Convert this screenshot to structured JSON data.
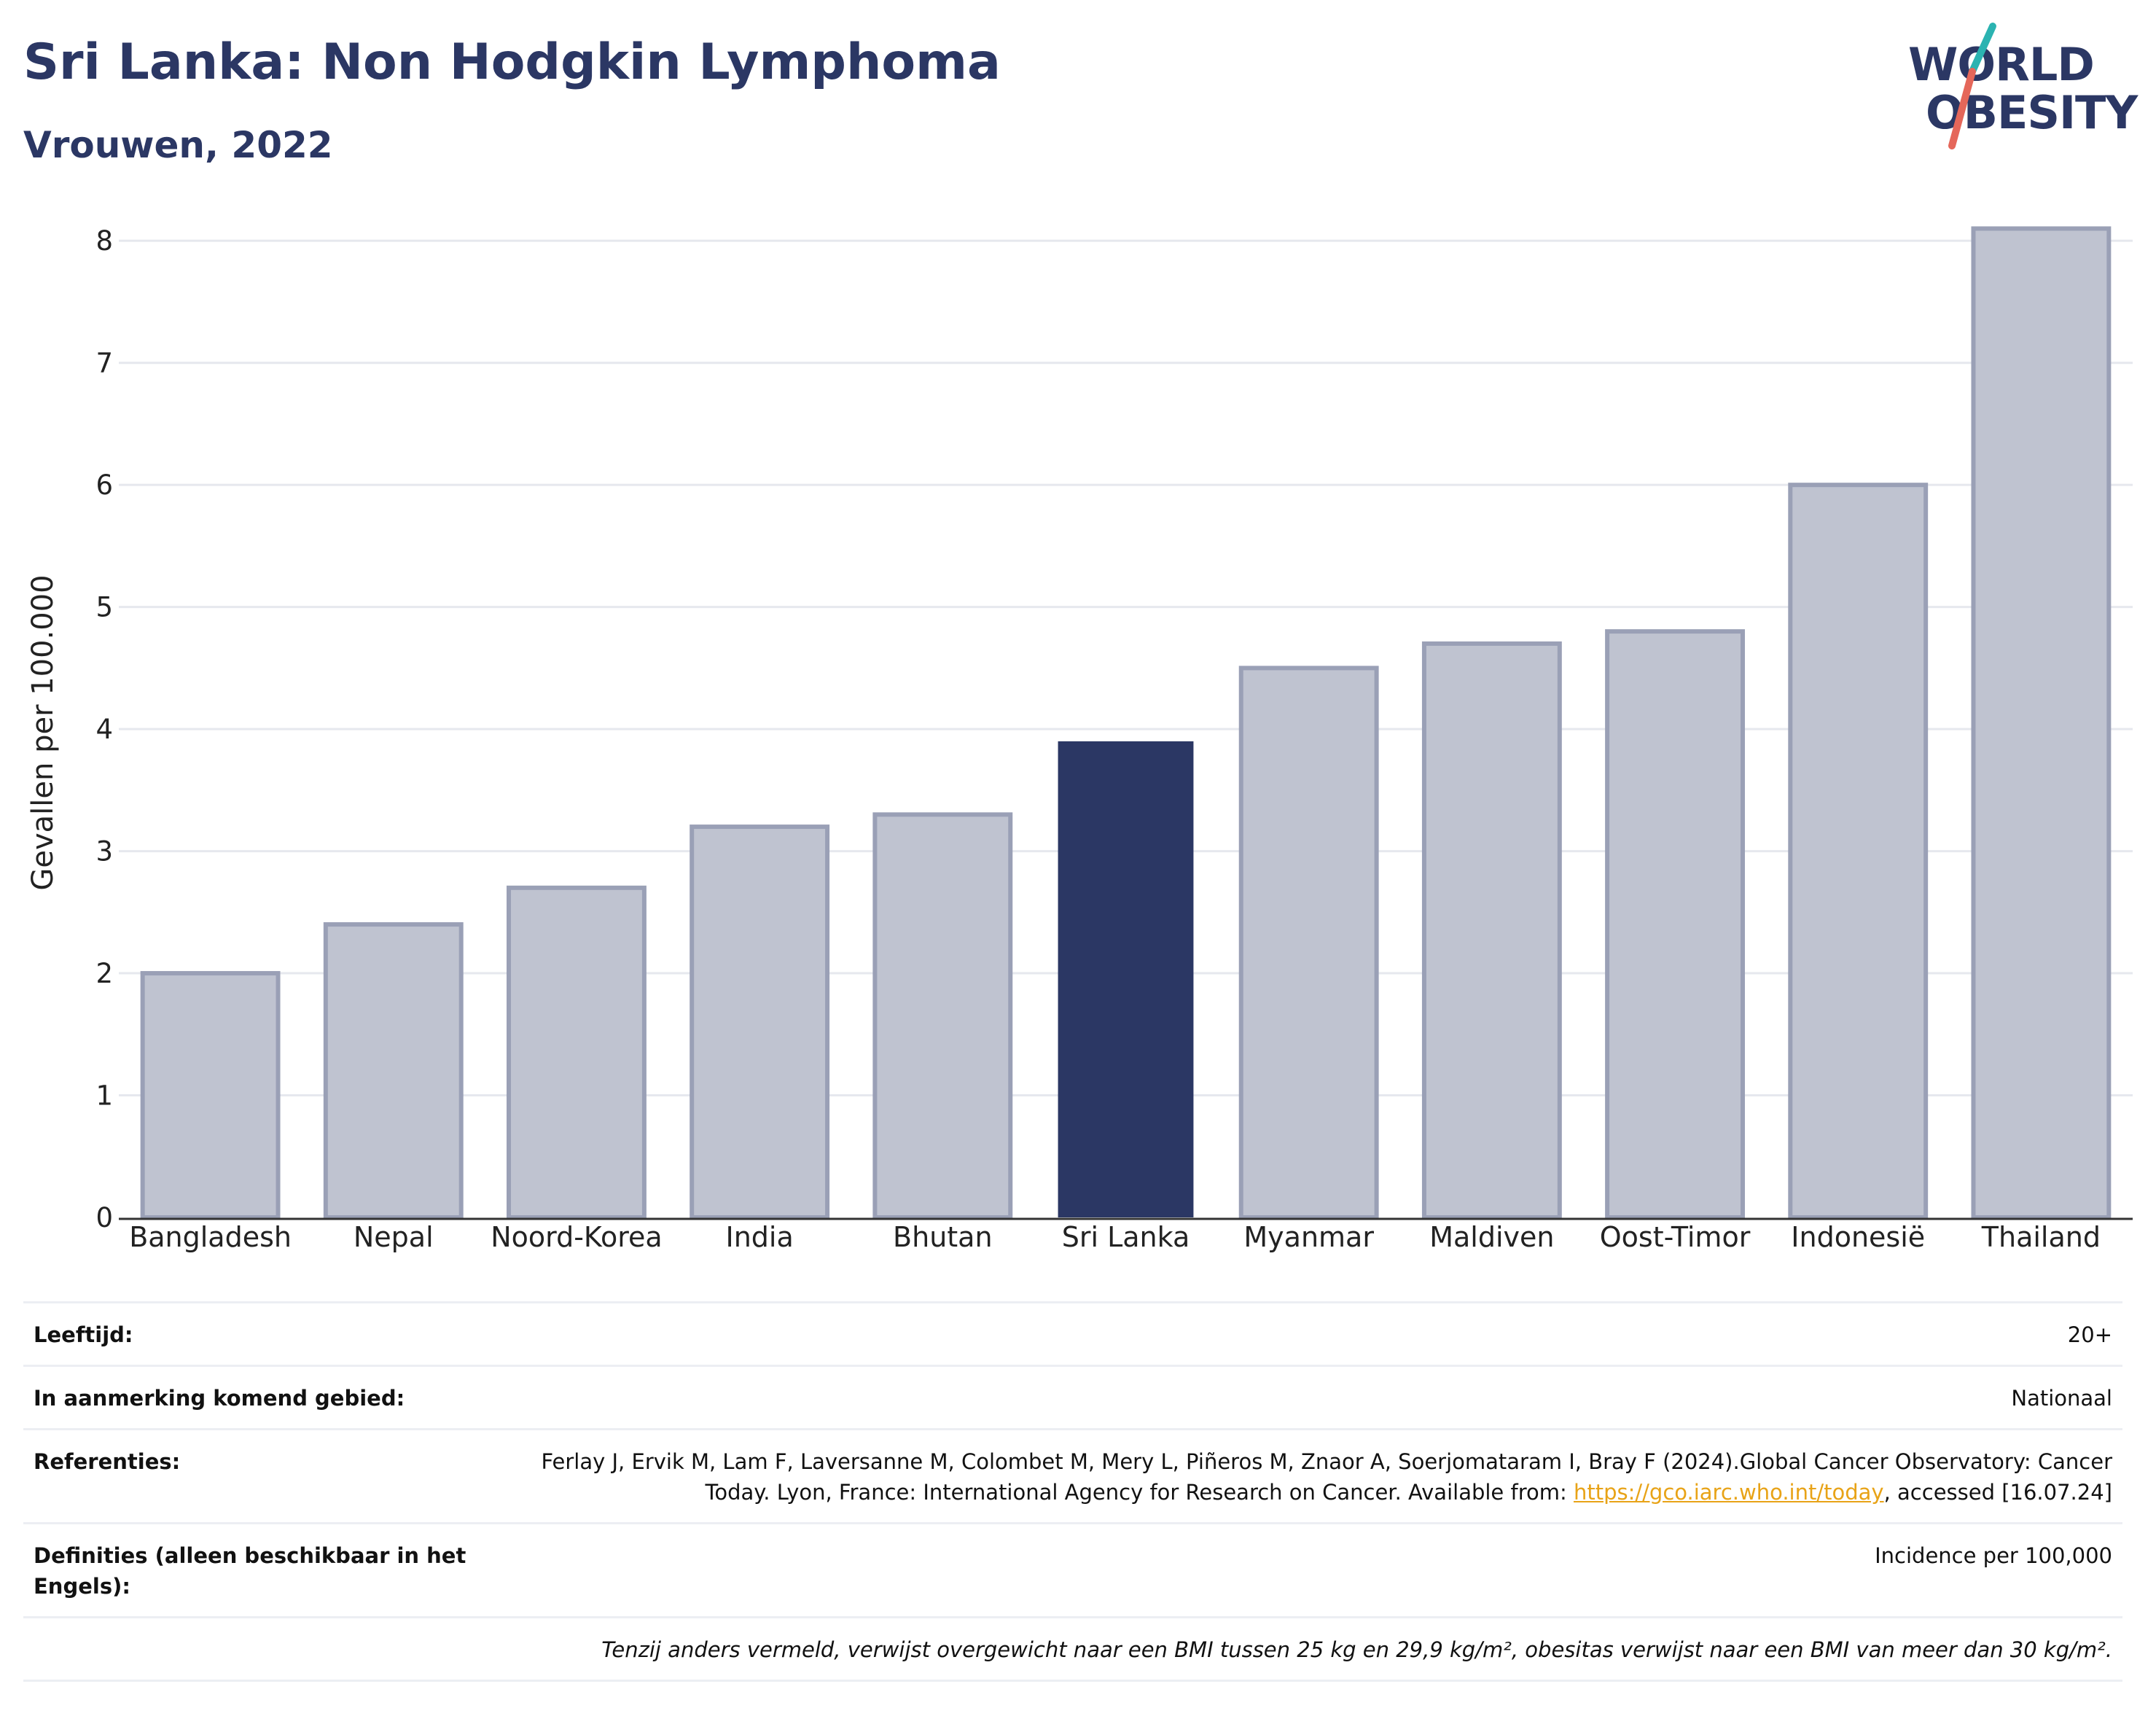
{
  "header": {
    "title": "Sri Lanka: Non Hodgkin Lymphoma",
    "subtitle": "Vrouwen, 2022"
  },
  "logo": {
    "line1": "WORLD",
    "line2": "OBESITY",
    "colors": {
      "text": "#2b3764",
      "slash_top": "#2bb3b1",
      "slash_bottom": "#e5675a"
    }
  },
  "chart_data": {
    "type": "bar",
    "categories": [
      "Bangladesh",
      "Nepal",
      "Noord-Korea",
      "India",
      "Bhutan",
      "Sri Lanka",
      "Myanmar",
      "Maldiven",
      "Oost-Timor",
      "Indonesië",
      "Thailand"
    ],
    "values": [
      2.0,
      2.4,
      2.7,
      3.2,
      3.3,
      3.9,
      4.5,
      4.7,
      4.8,
      6.0,
      8.1
    ],
    "highlight": "Sri Lanka",
    "title": "Sri Lanka: Non Hodgkin Lymphoma",
    "subtitle": "Vrouwen, 2022",
    "xlabel": "",
    "ylabel": "Gevallen per 100.000",
    "ylim": [
      0,
      8.3
    ],
    "yticks": [
      0,
      1,
      2,
      3,
      4,
      5,
      6,
      7,
      8
    ],
    "grid": true,
    "legend": "none",
    "colors": {
      "bar": "#bfc3d0",
      "bar_stroke": "#9aa0b6",
      "highlight": "#2b3764",
      "grid": "#e6e8ee",
      "axis": "#333333"
    }
  },
  "info": {
    "age_label": "Leeftijd:",
    "age_value": "20+",
    "area_label": "In aanmerking komend gebied:",
    "area_value": "Nationaal",
    "ref_label": "Referenties:",
    "ref_text_before": "Ferlay J, Ervik M, Lam F, Laversanne M, Colombet M, Mery L, Piñeros M, Znaor A, Soerjomataram I, Bray F (2024).Global Cancer Observatory: Cancer Today. Lyon, France: International Agency for Research on Cancer. Available from: ",
    "ref_link": "https://gco.iarc.who.int/today",
    "ref_text_after": ", accessed [16.07.24]",
    "def_label": "Definities (alleen beschikbaar in het Engels):",
    "def_value": "Incidence per 100,000",
    "note": "Tenzij anders vermeld, verwijst overgewicht naar een BMI tussen 25 kg en 29,9 kg/m², obesitas verwijst naar een BMI van meer dan 30 kg/m²."
  }
}
